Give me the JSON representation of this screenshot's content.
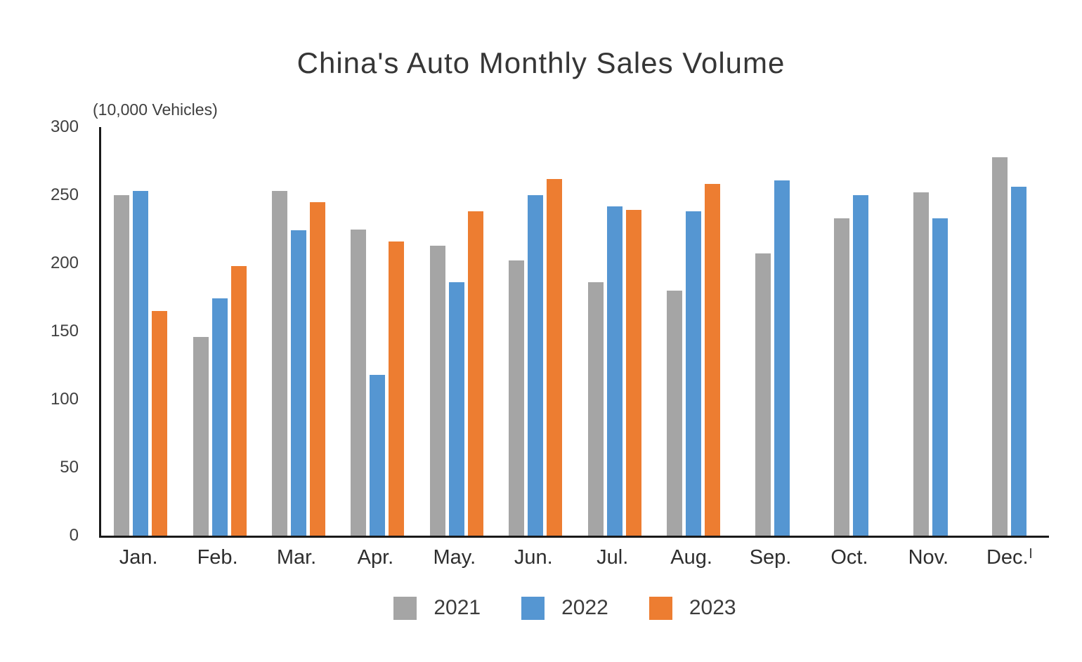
{
  "title": "China's Auto Monthly Sales Volume",
  "unit_label": "(10,000 Vehicles)",
  "colors": {
    "series_2021": "#A5A5A5",
    "series_2022": "#5596D2",
    "series_2023": "#ED7D31",
    "axis": "#1a1a1a",
    "text": "#3f3f3f"
  },
  "chart_data": {
    "type": "bar",
    "title": "China's Auto Monthly Sales Volume",
    "unit": "(10,000 Vehicles)",
    "categories": [
      "Jan.",
      "Feb.",
      "Mar.",
      "Apr.",
      "May.",
      "Jun.",
      "Jul.",
      "Aug.",
      "Sep.",
      "Oct.",
      "Nov.",
      "Dec."
    ],
    "y_ticks": [
      300,
      250,
      200,
      150,
      100,
      50,
      0
    ],
    "ylim": [
      0,
      300
    ],
    "grid": false,
    "legend_position": "bottom",
    "series": [
      {
        "name": "2021",
        "color": "#A5A5A5",
        "values": [
          250,
          146,
          253,
          225,
          213,
          202,
          186,
          180,
          207,
          233,
          252,
          278
        ]
      },
      {
        "name": "2022",
        "color": "#5596D2",
        "values": [
          253,
          174,
          224,
          118,
          186,
          250,
          242,
          238,
          261,
          250,
          233,
          256
        ]
      },
      {
        "name": "2023",
        "color": "#ED7D31",
        "values": [
          165,
          198,
          245,
          216,
          238,
          262,
          239,
          258,
          null,
          null,
          null,
          null
        ]
      }
    ]
  },
  "legend": {
    "items": [
      {
        "label": "2021"
      },
      {
        "label": "2022"
      },
      {
        "label": "2023"
      }
    ]
  }
}
